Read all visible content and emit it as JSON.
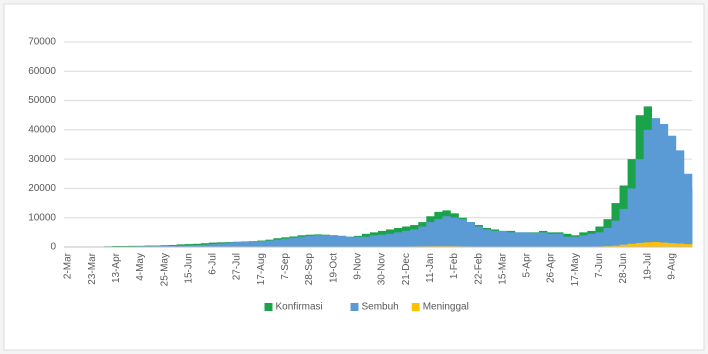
{
  "chart_data": {
    "type": "bar",
    "categories": [
      "2-Mar",
      null,
      null,
      "23-Mar",
      null,
      null,
      "13-Apr",
      null,
      null,
      "4-May",
      null,
      null,
      "25-May",
      null,
      null,
      "15-Jun",
      null,
      null,
      "6-Jul",
      null,
      null,
      "27-Jul",
      null,
      null,
      "17-Aug",
      null,
      null,
      "7-Sep",
      null,
      null,
      "28-Sep",
      null,
      null,
      "19-Oct",
      null,
      null,
      "9-Nov",
      null,
      null,
      "30-Nov",
      null,
      null,
      "21-Dec",
      null,
      null,
      "11-Jan",
      null,
      null,
      "1-Feb",
      null,
      null,
      "22-Feb",
      null,
      null,
      "15-Mar",
      null,
      null,
      "5-Apr",
      null,
      null,
      "26-Apr",
      null,
      null,
      "17-May",
      null,
      null,
      "7-Jun",
      null,
      null,
      "28-Jun",
      null,
      null,
      "19-Jul",
      null,
      null,
      "9-Aug",
      null,
      null
    ],
    "series": [
      {
        "name": "Konfirmasi",
        "color": "#1aa34a",
        "values": [
          0,
          0,
          50,
          100,
          150,
          250,
          350,
          350,
          400,
          400,
          500,
          500,
          600,
          700,
          900,
          1000,
          1100,
          1300,
          1500,
          1600,
          1700,
          1800,
          1900,
          2000,
          2200,
          2500,
          3000,
          3300,
          3600,
          4000,
          4200,
          4300,
          4200,
          4000,
          3800,
          3500,
          3800,
          4500,
          5000,
          5500,
          6000,
          6500,
          7000,
          7500,
          8500,
          10500,
          12000,
          12500,
          11500,
          10000,
          8500,
          7500,
          6500,
          6000,
          5500,
          5500,
          5000,
          5000,
          5000,
          5500,
          5000,
          5000,
          4500,
          4000,
          5000,
          5500,
          7000,
          9500,
          15000,
          21000,
          30000,
          45000,
          48000,
          40000,
          33000,
          28000,
          22000,
          20000
        ]
      },
      {
        "name": "Sembuh",
        "color": "#5b9bd5",
        "values": [
          0,
          0,
          0,
          10,
          20,
          50,
          100,
          150,
          200,
          250,
          300,
          300,
          350,
          400,
          500,
          600,
          700,
          800,
          1000,
          1200,
          1500,
          1700,
          1900,
          2000,
          2000,
          2200,
          2500,
          2800,
          3200,
          3500,
          3800,
          4000,
          4000,
          4000,
          3800,
          3500,
          3500,
          3500,
          4000,
          4200,
          4500,
          5000,
          5500,
          6000,
          7000,
          8500,
          9500,
          10500,
          10000,
          9500,
          8500,
          7000,
          6000,
          5500,
          5500,
          5000,
          5000,
          5000,
          4800,
          5000,
          4500,
          4500,
          3500,
          3500,
          4000,
          4500,
          5000,
          6500,
          9000,
          13000,
          20000,
          30000,
          40000,
          44000,
          42000,
          38000,
          33000,
          25000
        ]
      },
      {
        "name": "Meninggal",
        "color": "#ffc000",
        "values": [
          0,
          0,
          10,
          20,
          30,
          40,
          40,
          40,
          40,
          30,
          30,
          30,
          40,
          40,
          40,
          50,
          50,
          60,
          60,
          70,
          70,
          70,
          70,
          70,
          80,
          90,
          100,
          110,
          120,
          120,
          110,
          100,
          100,
          90,
          90,
          90,
          90,
          100,
          120,
          130,
          150,
          160,
          170,
          200,
          220,
          250,
          270,
          280,
          250,
          200,
          180,
          150,
          140,
          120,
          110,
          100,
          100,
          100,
          100,
          100,
          100,
          100,
          100,
          100,
          120,
          150,
          200,
          300,
          450,
          800,
          1100,
          1400,
          1600,
          1700,
          1500,
          1300,
          1200,
          1000
        ]
      }
    ],
    "ylim": [
      0,
      70000
    ],
    "yticks": [
      0,
      10000,
      20000,
      30000,
      40000,
      50000,
      60000,
      70000
    ],
    "grid": true,
    "legend": "bottom"
  }
}
